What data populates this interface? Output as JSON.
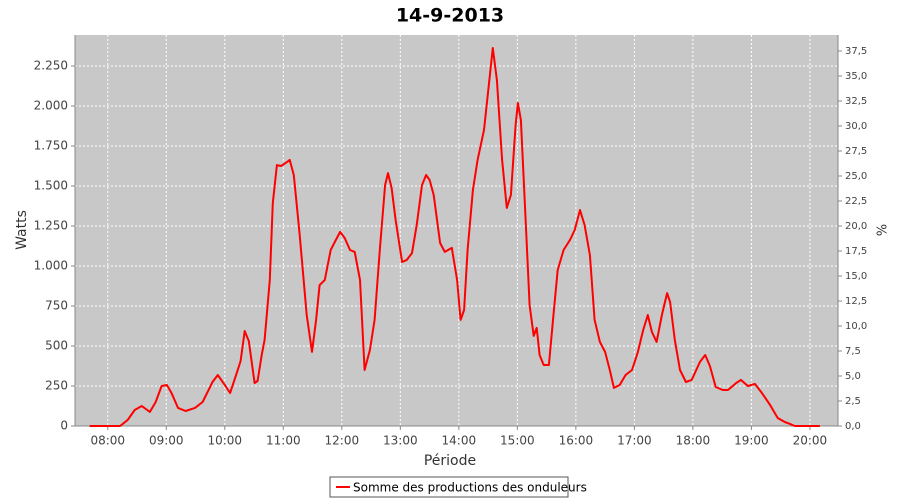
{
  "chart_data": {
    "type": "line",
    "title": "14-9-2013",
    "x_label": "Période",
    "y_label": "Watts",
    "y2_label": "%",
    "x": [
      7.69,
      8.21,
      8.34,
      8.46,
      8.58,
      8.72,
      8.82,
      8.92,
      9.01,
      9.09,
      9.2,
      9.33,
      9.49,
      9.62,
      9.74,
      9.79,
      9.88,
      10.0,
      10.09,
      10.21,
      10.27,
      10.34,
      10.41,
      10.51,
      10.56,
      10.63,
      10.68,
      10.77,
      10.82,
      10.89,
      10.96,
      11.04,
      11.11,
      11.18,
      11.28,
      11.4,
      11.49,
      11.56,
      11.62,
      11.71,
      11.81,
      11.88,
      11.97,
      12.05,
      12.14,
      12.22,
      12.31,
      12.39,
      12.48,
      12.56,
      12.65,
      12.74,
      12.79,
      12.85,
      12.92,
      13.03,
      13.11,
      13.2,
      13.28,
      13.37,
      13.44,
      13.5,
      13.57,
      13.68,
      13.76,
      13.88,
      13.97,
      14.03,
      14.09,
      14.15,
      14.24,
      14.32,
      14.43,
      14.53,
      14.58,
      14.65,
      14.74,
      14.82,
      14.89,
      14.97,
      15.01,
      15.06,
      15.15,
      15.21,
      15.28,
      15.33,
      15.38,
      15.45,
      15.54,
      15.61,
      15.69,
      15.79,
      15.9,
      15.98,
      16.07,
      16.15,
      16.24,
      16.32,
      16.41,
      16.5,
      16.58,
      16.65,
      16.75,
      16.85,
      16.96,
      17.06,
      17.15,
      17.23,
      17.3,
      17.38,
      17.47,
      17.56,
      17.61,
      17.69,
      17.78,
      17.88,
      17.98,
      18.12,
      18.21,
      18.29,
      18.39,
      18.51,
      18.6,
      18.74,
      18.82,
      18.94,
      19.06,
      19.18,
      19.32,
      19.45,
      19.57,
      19.66,
      19.74,
      20.17
    ],
    "series": [
      {
        "name": "Somme des productions des onduleurs",
        "color": "#ff0000",
        "values": [
          0,
          0,
          38,
          100,
          125,
          88,
          150,
          250,
          256,
          206,
          113,
          94,
          113,
          150,
          238,
          275,
          319,
          256,
          206,
          338,
          406,
          594,
          531,
          269,
          281,
          444,
          538,
          913,
          1394,
          1631,
          1625,
          1644,
          1663,
          1569,
          1194,
          694,
          463,
          663,
          881,
          913,
          1100,
          1150,
          1213,
          1175,
          1100,
          1088,
          913,
          350,
          475,
          663,
          1100,
          1506,
          1581,
          1488,
          1288,
          1025,
          1038,
          1081,
          1256,
          1506,
          1569,
          1538,
          1444,
          1144,
          1088,
          1113,
          913,
          663,
          725,
          1100,
          1475,
          1663,
          1850,
          2194,
          2363,
          2163,
          1663,
          1363,
          1444,
          1881,
          2019,
          1913,
          1225,
          756,
          563,
          613,
          444,
          381,
          381,
          663,
          975,
          1100,
          1163,
          1225,
          1350,
          1256,
          1069,
          663,
          525,
          463,
          350,
          238,
          256,
          319,
          350,
          463,
          600,
          694,
          588,
          525,
          694,
          831,
          775,
          538,
          350,
          275,
          288,
          400,
          444,
          375,
          244,
          225,
          225,
          269,
          288,
          250,
          263,
          206,
          131,
          50,
          25,
          13,
          0,
          0
        ]
      }
    ],
    "xlim": [
      7.44,
      20.48
    ],
    "xticks": [
      {
        "value": 8,
        "label": "08:00"
      },
      {
        "value": 9,
        "label": "09:00"
      },
      {
        "value": 10,
        "label": "10:00"
      },
      {
        "value": 11,
        "label": "11:00"
      },
      {
        "value": 12,
        "label": "12:00"
      },
      {
        "value": 13,
        "label": "13:00"
      },
      {
        "value": 14,
        "label": "14:00"
      },
      {
        "value": 15,
        "label": "15:00"
      },
      {
        "value": 16,
        "label": "16:00"
      },
      {
        "value": 17,
        "label": "17:00"
      },
      {
        "value": 18,
        "label": "18:00"
      },
      {
        "value": 19,
        "label": "19:00"
      },
      {
        "value": 20,
        "label": "20:00"
      }
    ],
    "ylim": [
      0,
      2444
    ],
    "yticks": [
      0,
      250,
      500,
      750,
      {
        "value": 1000,
        "label": "1.000"
      },
      {
        "value": 1250,
        "label": "1.250"
      },
      {
        "value": 1500,
        "label": "1.500"
      },
      {
        "value": 1750,
        "label": "1.750"
      },
      {
        "value": 2000,
        "label": "2.000"
      },
      {
        "value": 2250,
        "label": "2.250"
      }
    ],
    "y2lim": [
      0,
      39.1
    ],
    "y2ticks": [
      {
        "value": 0,
        "label": "0,0"
      },
      {
        "value": 2.5,
        "label": "2,5"
      },
      {
        "value": 5,
        "label": "5,0"
      },
      {
        "value": 7.5,
        "label": "7,5"
      },
      {
        "value": 10,
        "label": "10,0"
      },
      {
        "value": 12.5,
        "label": "12,5"
      },
      {
        "value": 15,
        "label": "15,0"
      },
      {
        "value": 17.5,
        "label": "17,5"
      },
      {
        "value": 20,
        "label": "20,0"
      },
      {
        "value": 22.5,
        "label": "22,5"
      },
      {
        "value": 25,
        "label": "25,0"
      },
      {
        "value": 27.5,
        "label": "27,5"
      },
      {
        "value": 30,
        "label": "30,0"
      },
      {
        "value": 32.5,
        "label": "32,5"
      },
      {
        "value": 35,
        "label": "35,0"
      },
      {
        "value": 37.5,
        "label": "37,5"
      }
    ],
    "grid": true,
    "legend": "bottom"
  }
}
